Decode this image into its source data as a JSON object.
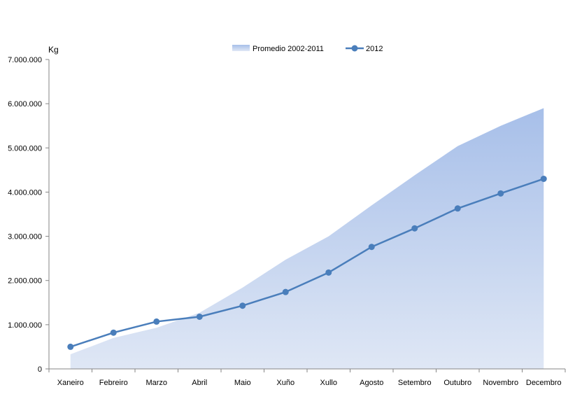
{
  "chart_data": {
    "type": "area",
    "ylabel": "Kg",
    "categories": [
      "Xaneiro",
      "Febreiro",
      "Marzo",
      "Abril",
      "Maio",
      "Xuño",
      "Xullo",
      "Agosto",
      "Setembro",
      "Outubro",
      "Novembro",
      "Decembro"
    ],
    "ylim": [
      0,
      7000000
    ],
    "yticks": [
      "0",
      "1.000.000",
      "2.000.000",
      "3.000.000",
      "4.000.000",
      "5.000.000",
      "6.000.000",
      "7.000.000"
    ],
    "legend_position": "top",
    "grid": false,
    "series": [
      {
        "name": "Promedio 2002-2011",
        "type": "area",
        "color": "#b8c9ea",
        "values": [
          330000,
          700000,
          930000,
          1270000,
          1840000,
          2470000,
          3000000,
          3700000,
          4380000,
          5040000,
          5500000,
          5900000
        ]
      },
      {
        "name": "2012",
        "type": "line",
        "color": "#4a7ebb",
        "values": [
          500000,
          820000,
          1070000,
          1180000,
          1430000,
          1740000,
          2180000,
          2760000,
          3180000,
          3630000,
          3970000,
          4300000
        ]
      }
    ]
  }
}
